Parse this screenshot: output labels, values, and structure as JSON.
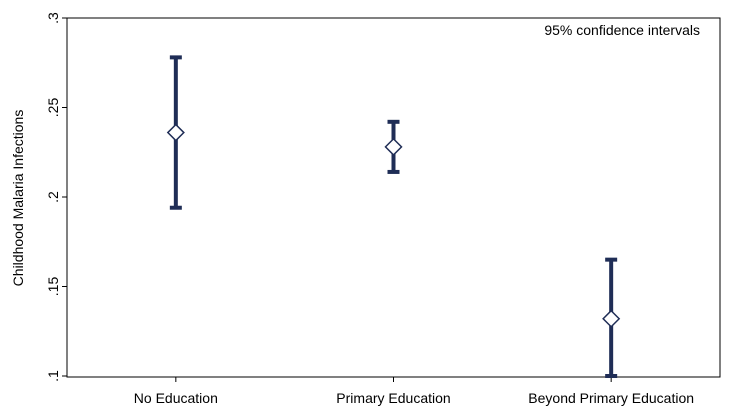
{
  "chart_data": {
    "type": "scatter",
    "variant": "point-estimate-with-confidence-interval",
    "title": "",
    "xlabel": "",
    "ylabel": "Childhood Malaria Infections",
    "annotation": "95% confidence intervals",
    "categories": [
      "No Education",
      "Primary Education",
      "Beyond Primary Education"
    ],
    "points": [
      {
        "category": "No Education",
        "estimate": 0.236,
        "ci_low": 0.194,
        "ci_high": 0.278
      },
      {
        "category": "Primary Education",
        "estimate": 0.228,
        "ci_low": 0.214,
        "ci_high": 0.242
      },
      {
        "category": "Beyond Primary Education",
        "estimate": 0.132,
        "ci_low": 0.1,
        "ci_high": 0.165
      }
    ],
    "ylim": [
      0.1,
      0.3
    ],
    "yticks": [
      0.1,
      0.15,
      0.2,
      0.25,
      0.3
    ],
    "ytick_labels": [
      ".1",
      ".15",
      ".2",
      ".25",
      ".3"
    ],
    "grid": false,
    "legend": "none",
    "colors": {
      "series": "#1f2d56",
      "frame": "#000000",
      "background": "#ffffff"
    }
  }
}
